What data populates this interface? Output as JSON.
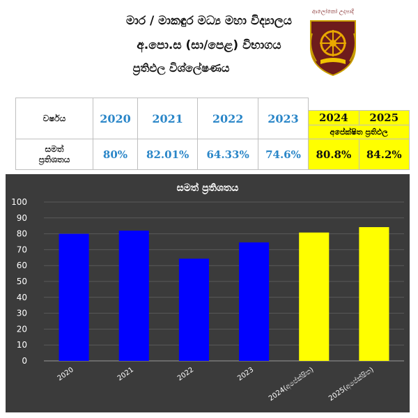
{
  "header": {
    "line1": "මාර /  මාකඳුර මධ්‍ය මහා විද්‍යාලය",
    "line2": "අ.පො.ස (සා/පෙළ) විභාගය",
    "line3": "ප්‍රතිඵල විශ්ලේෂණය",
    "crest_motto": "ආලෝකෝ උදපාදි",
    "crest_colors": {
      "shield": "#6e1c1c",
      "wheel": "#e9a800",
      "book": "#f1c400"
    }
  },
  "table": {
    "row1_label": "වර්ෂය",
    "row2_label_line1": "සමත්",
    "row2_label_line2": "ප්‍රතිශතය",
    "years": [
      "2020",
      "2021",
      "2022",
      "2023",
      "2024",
      "2025"
    ],
    "percentages": [
      "80%",
      "82.01%",
      "64.33%",
      "74.6%",
      "80.8%",
      "84.2%"
    ],
    "expected_label": "අපේක්ෂිත ප්‍රතිඵල",
    "highlight_color": "#ffff00",
    "year_text_color": "#2a86c8"
  },
  "chart_data": {
    "type": "bar",
    "title": "සමත් ප්‍රතිශතය",
    "categories": [
      "2020",
      "2021",
      "2022",
      "2023",
      "2024(අපේක්ෂිත)",
      "2025(අපේක්ෂිත)"
    ],
    "values": [
      80,
      82.01,
      64.33,
      74.6,
      80.8,
      84.2
    ],
    "bar_colors": [
      "#0000ff",
      "#0000ff",
      "#0000ff",
      "#0000ff",
      "#ffff00",
      "#ffff00"
    ],
    "ylim": [
      0,
      100
    ],
    "yticks": [
      0,
      10,
      20,
      30,
      40,
      50,
      60,
      70,
      80,
      90,
      100
    ],
    "grid": true,
    "background": "#3b3b3b",
    "legend": "none"
  }
}
